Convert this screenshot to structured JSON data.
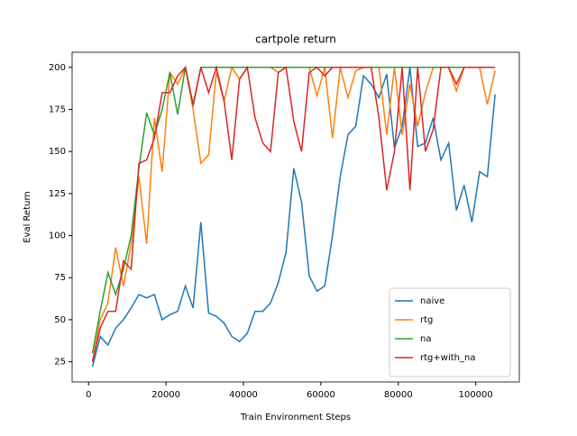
{
  "chart_data": {
    "type": "line",
    "title": "cartpole return",
    "x_label": "Train Environment Steps",
    "y_label": "Eval Return",
    "x": [
      1000,
      3000,
      5000,
      7000,
      9000,
      11000,
      13000,
      15000,
      17000,
      19000,
      21000,
      23000,
      25000,
      27000,
      29000,
      31000,
      33000,
      35000,
      37000,
      39000,
      41000,
      43000,
      45000,
      47000,
      49000,
      51000,
      53000,
      55000,
      57000,
      59000,
      61000,
      63000,
      65000,
      67000,
      69000,
      71000,
      73000,
      75000,
      77000,
      79000,
      81000,
      83000,
      85000,
      87000,
      89000,
      91000,
      93000,
      95000,
      97000,
      99000,
      101000,
      103000,
      105000
    ],
    "series": [
      {
        "name": "naive",
        "color": "#1f77b4",
        "values": [
          22,
          40,
          35,
          45,
          50,
          57,
          65,
          63,
          65,
          50,
          53,
          55,
          70,
          57,
          108,
          54,
          52,
          48,
          40,
          37,
          42,
          55,
          55,
          60,
          72,
          90,
          140,
          120,
          76,
          67,
          70,
          100,
          135,
          160,
          165,
          195,
          190,
          182,
          196,
          152,
          165,
          200,
          153,
          155,
          170,
          145,
          155,
          115,
          130,
          108,
          138,
          135,
          184
        ]
      },
      {
        "name": "rtg",
        "color": "#ff7f0e",
        "values": [
          25,
          50,
          60,
          93,
          70,
          95,
          135,
          95,
          170,
          138,
          197,
          190,
          200,
          175,
          143,
          148,
          197,
          180,
          200,
          193,
          200,
          200,
          200,
          200,
          197,
          200,
          200,
          200,
          200,
          183,
          200,
          158,
          200,
          182,
          198,
          200,
          200,
          200,
          160,
          200,
          160,
          190,
          165,
          185,
          200,
          200,
          200,
          186,
          200,
          200,
          200,
          178,
          198
        ]
      },
      {
        "name": "na",
        "color": "#2ca02c",
        "values": [
          30,
          55,
          78,
          65,
          80,
          100,
          140,
          173,
          160,
          175,
          197,
          172,
          200,
          177,
          200,
          200,
          200,
          200,
          200,
          200,
          200,
          200,
          200,
          200,
          200,
          200,
          200,
          200,
          200,
          200,
          200,
          200,
          200,
          200,
          200,
          200,
          200,
          200,
          200,
          200,
          200,
          200,
          200,
          200,
          200,
          200,
          200,
          200,
          200,
          200,
          200,
          200,
          200
        ]
      },
      {
        "name": "rtg+with_na",
        "color": "#d62728",
        "values": [
          25,
          45,
          55,
          55,
          85,
          80,
          143,
          145,
          158,
          185,
          185,
          195,
          200,
          178,
          200,
          185,
          200,
          180,
          145,
          193,
          200,
          170,
          155,
          150,
          197,
          200,
          168,
          150,
          197,
          200,
          195,
          200,
          200,
          200,
          200,
          200,
          200,
          170,
          127,
          150,
          200,
          127,
          200,
          150,
          163,
          200,
          200,
          190,
          200,
          200,
          200,
          200,
          200
        ]
      }
    ],
    "xlim": [
      -4250,
      111250
    ],
    "xticks": [
      0,
      20000,
      40000,
      60000,
      80000,
      100000
    ],
    "ylim": [
      13,
      209
    ],
    "yticks": [
      25,
      50,
      75,
      100,
      125,
      150,
      175,
      200
    ],
    "legend": "lower right"
  }
}
